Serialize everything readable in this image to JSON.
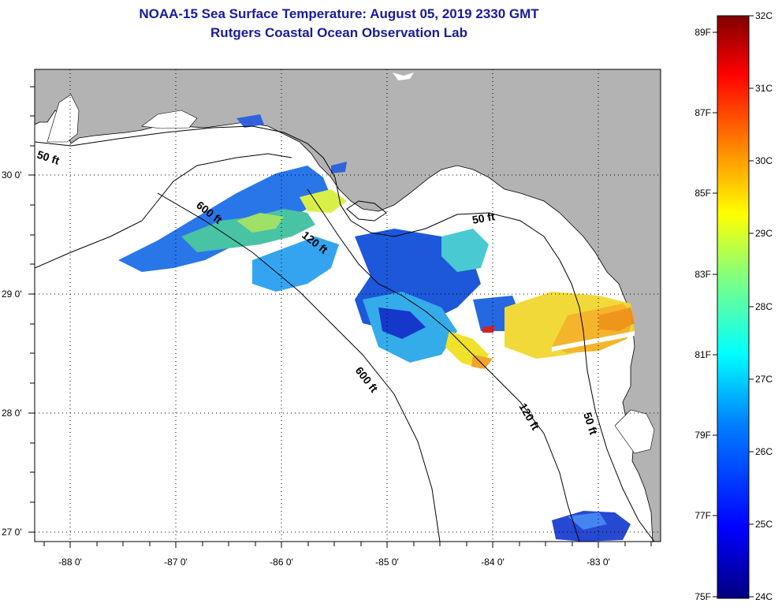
{
  "title": {
    "line1": "NOAA-15 Sea Surface Temperature:  August 05, 2019 2330 GMT",
    "line2": "Rutgers Coastal Ocean Observation Lab"
  },
  "colors": {
    "land": "#b3b3b3",
    "water": "#ffffff",
    "frame": "#000000",
    "title": "#1a1a9a"
  },
  "lat_labels": [
    "30 0'",
    "29 0'",
    "28 0'",
    "27 0'"
  ],
  "lon_labels": [
    "-88 0'",
    "-87 0'",
    "-86 0'",
    "-85 0'",
    "-84 0'",
    "-83 0'"
  ],
  "contours": [
    {
      "label": "50 ft"
    },
    {
      "label": "600 ft"
    },
    {
      "label": "120 ft"
    },
    {
      "label": "50 ft"
    },
    {
      "label": "600 ft"
    },
    {
      "label": "120 ft"
    },
    {
      "label": "50 ft"
    }
  ],
  "colorbar": {
    "stops": [
      "#000080",
      "#0000ff",
      "#0080ff",
      "#00ffff",
      "#80ff80",
      "#ffff00",
      "#ff8000",
      "#ff0000",
      "#800000"
    ],
    "f_labels": [
      "89F",
      "87F",
      "85F",
      "83F",
      "81F",
      "79F",
      "77F",
      "75F"
    ],
    "c_labels": [
      "32C",
      "31C",
      "30C",
      "29C",
      "28C",
      "27C",
      "26C",
      "25C",
      "24C"
    ]
  }
}
